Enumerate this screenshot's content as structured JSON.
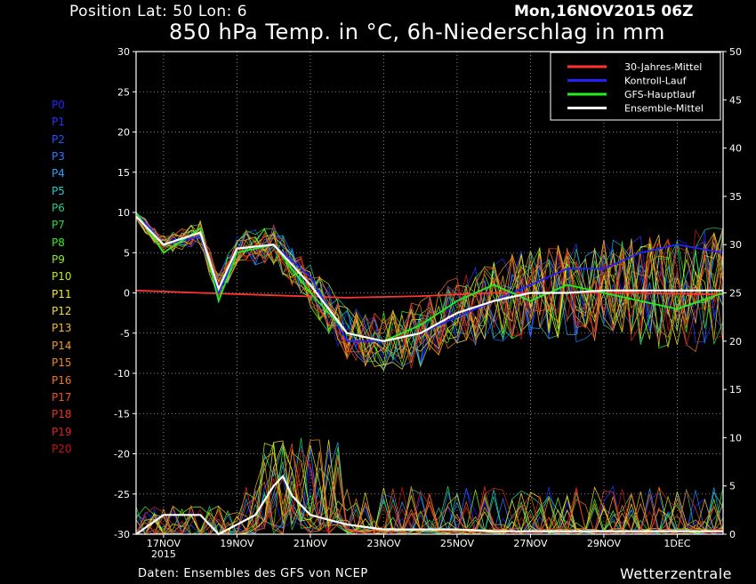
{
  "header": {
    "position_label": "Position   Lat: 50 Lon: 6",
    "run_time": "Mon,16NOV2015 06Z",
    "title": "850 hPa Temp. in °C, 6h-Niederschlag in mm"
  },
  "footer": {
    "source": "Daten: Ensembles des GFS von NCEP",
    "brand": "Wetterzentrale"
  },
  "members": [
    {
      "label": "P0",
      "color": "#2222ff"
    },
    {
      "label": "P1",
      "color": "#2233ff"
    },
    {
      "label": "P2",
      "color": "#2255ff"
    },
    {
      "label": "P3",
      "color": "#2a7aff"
    },
    {
      "label": "P4",
      "color": "#2aa0ff"
    },
    {
      "label": "P5",
      "color": "#22cccc"
    },
    {
      "label": "P6",
      "color": "#22cc88"
    },
    {
      "label": "P7",
      "color": "#22dd44"
    },
    {
      "label": "P8",
      "color": "#33ee22"
    },
    {
      "label": "P9",
      "color": "#88ee22"
    },
    {
      "label": "P10",
      "color": "#bbee11"
    },
    {
      "label": "P11",
      "color": "#eeee22"
    },
    {
      "label": "P12",
      "color": "#eedd22"
    },
    {
      "label": "P13",
      "color": "#eebb22"
    },
    {
      "label": "P14",
      "color": "#ee9922"
    },
    {
      "label": "P15",
      "color": "#ee8822"
    },
    {
      "label": "P16",
      "color": "#ee7722"
    },
    {
      "label": "P17",
      "color": "#ee5522"
    },
    {
      "label": "P18",
      "color": "#ee3322"
    },
    {
      "label": "P19",
      "color": "#dd2222"
    },
    {
      "label": "P20",
      "color": "#cc1111"
    }
  ],
  "chart_data": {
    "type": "line",
    "title": "850 hPa Temp. in °C, 6h-Niederschlag in mm",
    "x_axis": {
      "range": [
        "2015-11-16T06Z",
        "2015-12-02T06Z"
      ],
      "ticks": [
        "2015-11-17",
        "2015-11-19",
        "2015-11-21",
        "2015-11-23",
        "2015-11-25",
        "2015-11-27",
        "2015-11-29",
        "2015-12-01"
      ],
      "tick_labels": [
        "17NOV",
        "19NOV",
        "21NOV",
        "23NOV",
        "25NOV",
        "27NOV",
        "29NOV",
        "1DEC"
      ],
      "year_label": "2015"
    },
    "y_left": {
      "range": [
        -30,
        30
      ],
      "ticks": [
        30,
        25,
        20,
        15,
        10,
        5,
        0,
        -5,
        -10,
        -15,
        -20,
        -25,
        -30
      ],
      "tick_labels": [
        "30",
        "25",
        "20",
        "15",
        "10",
        "5",
        "0",
        "-5",
        "-10",
        "-15",
        "-20",
        "-25",
        "-30"
      ]
    },
    "y_right": {
      "range": [
        0,
        50
      ],
      "ticks": [
        50,
        45,
        40,
        35,
        30,
        25,
        20,
        15,
        10,
        5,
        0
      ],
      "tick_labels": [
        "50",
        "45",
        "40",
        "35",
        "30",
        "25",
        "20",
        "15",
        "10",
        "5",
        "0"
      ]
    },
    "grid": true,
    "legend_position": "top-right",
    "series": [
      {
        "name": "30-Jahres-Mittel",
        "color": "#ff3333",
        "axis": "left",
        "x": [
          "2015-11-16T06Z",
          "2015-11-18",
          "2015-11-20",
          "2015-11-22",
          "2015-11-24",
          "2015-11-26",
          "2015-11-28",
          "2015-11-30",
          "2015-12-02T06Z"
        ],
        "values": [
          0.3,
          0,
          -0.3,
          -0.6,
          -0.4,
          0,
          0,
          0,
          -0.2
        ]
      },
      {
        "name": "Kontroll-Lauf",
        "color": "#2222ff",
        "axis": "left",
        "x": [
          "2015-11-16T06Z",
          "2015-11-17",
          "2015-11-18",
          "2015-11-18T12Z",
          "2015-11-19",
          "2015-11-20",
          "2015-11-21",
          "2015-11-22",
          "2015-11-23",
          "2015-11-24",
          "2015-11-25",
          "2015-11-26",
          "2015-11-27",
          "2015-11-28",
          "2015-11-29",
          "2015-11-30",
          "2015-12-01",
          "2015-12-02T06Z"
        ],
        "values": [
          10,
          6,
          7,
          0,
          5,
          6,
          2,
          -6,
          -6,
          -5,
          -3,
          -1,
          1,
          3,
          3,
          5,
          6,
          5
        ]
      },
      {
        "name": "GFS-Hauptlauf",
        "color": "#22ee22",
        "axis": "left",
        "x": [
          "2015-11-16T06Z",
          "2015-11-17",
          "2015-11-18",
          "2015-11-18T12Z",
          "2015-11-19",
          "2015-11-20",
          "2015-11-21",
          "2015-11-22",
          "2015-11-23",
          "2015-11-24",
          "2015-11-25",
          "2015-11-26",
          "2015-11-27",
          "2015-11-28",
          "2015-11-29",
          "2015-11-30",
          "2015-12-01",
          "2015-12-02T06Z"
        ],
        "values": [
          10,
          5,
          8,
          -1,
          5,
          6,
          0,
          -5,
          -6,
          -4,
          -1,
          1,
          -1,
          1,
          0,
          -1,
          -2,
          0
        ]
      },
      {
        "name": "Ensemble-Mittel",
        "color": "#ffffff",
        "axis": "left",
        "x": [
          "2015-11-16T06Z",
          "2015-11-17",
          "2015-11-18",
          "2015-11-18T12Z",
          "2015-11-19",
          "2015-11-20",
          "2015-11-21",
          "2015-11-22",
          "2015-11-23",
          "2015-11-24",
          "2015-11-25",
          "2015-11-26",
          "2015-11-27",
          "2015-11-28",
          "2015-11-29",
          "2015-11-30",
          "2015-12-01",
          "2015-12-02T06Z"
        ],
        "values": [
          9.5,
          6,
          7.5,
          0.5,
          5.5,
          6,
          1,
          -5,
          -6,
          -5,
          -2.5,
          -1,
          0,
          0,
          0.3,
          0.3,
          0.3,
          0.3
        ]
      },
      {
        "name": "Ensemble-Mittel",
        "color": "#ffffff",
        "axis": "right",
        "x": [
          "2015-11-16T06Z",
          "2015-11-17",
          "2015-11-18",
          "2015-11-18T12Z",
          "2015-11-19",
          "2015-11-19T12Z",
          "2015-11-20",
          "2015-11-20T06Z",
          "2015-11-20T12Z",
          "2015-11-21",
          "2015-11-22",
          "2015-11-23",
          "2015-11-24",
          "2015-11-25",
          "2015-11-26",
          "2015-11-28",
          "2015-11-30",
          "2015-12-02T06Z"
        ],
        "values": [
          0,
          2,
          2,
          0,
          1,
          2,
          5,
          6,
          4,
          2,
          1,
          0.5,
          0.5,
          0.5,
          0.3,
          0.3,
          0.3,
          0.3
        ]
      }
    ]
  }
}
